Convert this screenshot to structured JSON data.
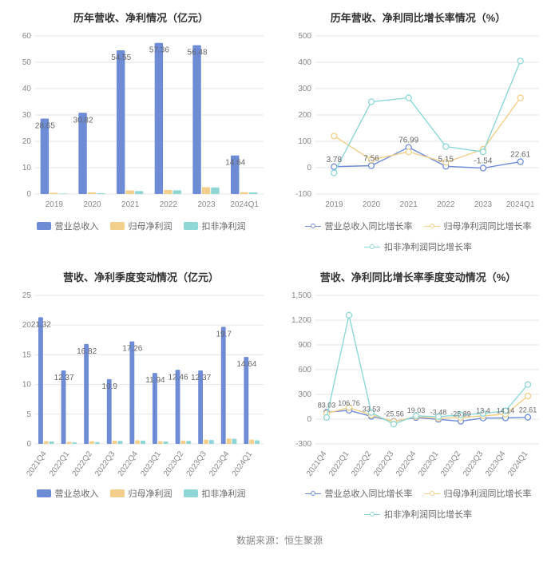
{
  "colors": {
    "series_revenue": "#6e8cd6",
    "series_net": "#f2cf8a",
    "series_nonrec": "#8fd7d7",
    "grid": "#e5e5e5",
    "axis_text": "#888888",
    "title": "#333333",
    "background": "#ffffff"
  },
  "title_fontsize": 13,
  "axis_fontsize": 10,
  "chart1": {
    "type": "bar",
    "title": "历年营收、净利情况（亿元）",
    "categories": [
      "2019",
      "2020",
      "2021",
      "2022",
      "2023",
      "2024Q1"
    ],
    "ylim": [
      0,
      60
    ],
    "ytick_step": 10,
    "series": [
      {
        "name": "营业总收入",
        "color": "#6e8cd6",
        "values": [
          28.65,
          30.82,
          54.55,
          57.36,
          56.48,
          14.64
        ]
      },
      {
        "name": "归母净利润",
        "color": "#f2cf8a",
        "values": [
          0.45,
          0.6,
          1.35,
          1.5,
          2.6,
          0.7
        ]
      },
      {
        "name": "扣非净利润",
        "color": "#8fd7d7",
        "values": [
          0.2,
          0.3,
          1.1,
          1.4,
          2.5,
          0.6
        ]
      }
    ],
    "value_labels": [
      28.65,
      30.82,
      54.55,
      57.36,
      56.48,
      14.64
    ],
    "bar_group_width": 0.72
  },
  "chart2": {
    "type": "line",
    "title": "历年营收、净利同比增长率情况（%）",
    "categories": [
      "2019",
      "2020",
      "2021",
      "2022",
      "2023",
      "2024Q1"
    ],
    "ylim": [
      -100,
      500
    ],
    "ytick_step": 100,
    "series": [
      {
        "name": "营业总收入同比增长率",
        "color": "#6e8cd6",
        "values": [
          3.78,
          7.56,
          76.99,
          5.15,
          -1.54,
          22.61
        ]
      },
      {
        "name": "归母净利润同比增长率",
        "color": "#f2cf8a",
        "values": [
          120,
          30,
          60,
          20,
          70,
          265
        ]
      },
      {
        "name": "扣非净利润同比增长率",
        "color": "#8fd7d7",
        "values": [
          -20,
          250,
          265,
          80,
          60,
          405
        ]
      }
    ],
    "value_labels": [
      3.78,
      7.56,
      76.99,
      5.15,
      -1.54,
      22.61
    ],
    "marker_size": 3.5
  },
  "chart3": {
    "type": "bar",
    "title": "营收、净利季度变动情况（亿元）",
    "categories": [
      "2021Q4",
      "2022Q1",
      "2022Q2",
      "2022Q3",
      "2022Q4",
      "2023Q1",
      "2023Q2",
      "2023Q3",
      "2023Q4",
      "2024Q1"
    ],
    "ylim": [
      0,
      25
    ],
    "ytick_step": 5,
    "series": [
      {
        "name": "营业总收入",
        "color": "#6e8cd6",
        "values": [
          21.32,
          12.37,
          16.82,
          10.9,
          17.26,
          11.94,
          12.46,
          12.37,
          19.7,
          14.64
        ]
      },
      {
        "name": "归母净利润",
        "color": "#f2cf8a",
        "values": [
          0.45,
          0.35,
          0.45,
          0.55,
          0.6,
          0.45,
          0.55,
          0.7,
          0.9,
          0.7
        ]
      },
      {
        "name": "扣非净利润",
        "color": "#8fd7d7",
        "values": [
          0.4,
          0.25,
          0.3,
          0.5,
          0.55,
          0.4,
          0.5,
          0.65,
          0.85,
          0.6
        ]
      }
    ],
    "value_labels": [
      21.32,
      12.37,
      16.82,
      10.9,
      17.26,
      11.94,
      12.46,
      12.37,
      19.7,
      14.64
    ],
    "bar_group_width": 0.72,
    "xlabel_rotate": -55
  },
  "chart4": {
    "type": "line",
    "title": "营收、净利同比增长率季度变动情况（%）",
    "categories": [
      "2021Q4",
      "2022Q1",
      "2022Q2",
      "2022Q3",
      "2022Q4",
      "2023Q1",
      "2023Q2",
      "2023Q3",
      "2023Q4",
      "2024Q1"
    ],
    "ylim": [
      -300,
      1500
    ],
    "ytick_step": 300,
    "series": [
      {
        "name": "营业总收入同比增长率",
        "color": "#6e8cd6",
        "values": [
          83.03,
          106.76,
          33.53,
          -25.56,
          19.03,
          -3.48,
          -25.89,
          13.4,
          14.14,
          22.61
        ]
      },
      {
        "name": "归母净利润同比增长率",
        "color": "#f2cf8a",
        "values": [
          70,
          140,
          50,
          -30,
          30,
          10,
          20,
          40,
          60,
          280
        ]
      },
      {
        "name": "扣非净利润同比增长率",
        "color": "#8fd7d7",
        "values": [
          20,
          1260,
          80,
          -60,
          40,
          30,
          50,
          70,
          100,
          420
        ]
      }
    ],
    "value_labels": [
      83.03,
      106.76,
      33.53,
      -25.56,
      19.03,
      -3.48,
      -25.89,
      13.4,
      14.14,
      22.61
    ],
    "marker_size": 3.5,
    "xlabel_rotate": -55
  },
  "legend_bar": [
    "营业总收入",
    "归母净利润",
    "扣非净利润"
  ],
  "legend_line": [
    "营业总收入同比增长率",
    "归母净利润同比增长率",
    "扣非净利润同比增长率"
  ],
  "source": "数据来源：恒生聚源"
}
